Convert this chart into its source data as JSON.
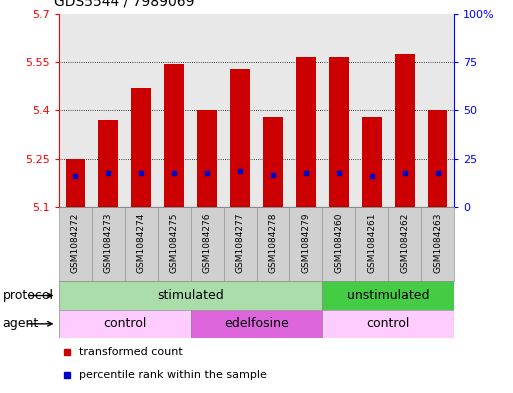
{
  "title": "GDS5544 / 7989069",
  "samples": [
    "GSM1084272",
    "GSM1084273",
    "GSM1084274",
    "GSM1084275",
    "GSM1084276",
    "GSM1084277",
    "GSM1084278",
    "GSM1084279",
    "GSM1084260",
    "GSM1084261",
    "GSM1084262",
    "GSM1084263"
  ],
  "bar_tops": [
    5.25,
    5.37,
    5.47,
    5.545,
    5.4,
    5.53,
    5.38,
    5.565,
    5.565,
    5.38,
    5.575,
    5.4
  ],
  "bar_bottom": 5.1,
  "blue_marker_y": [
    5.195,
    5.205,
    5.205,
    5.205,
    5.205,
    5.21,
    5.2,
    5.205,
    5.205,
    5.195,
    5.205,
    5.205
  ],
  "ylim_left": [
    5.1,
    5.7
  ],
  "ylim_right": [
    0,
    100
  ],
  "yticks_left": [
    5.1,
    5.25,
    5.4,
    5.55,
    5.7
  ],
  "ytick_labels_left": [
    "5.1",
    "5.25",
    "5.4",
    "5.55",
    "5.7"
  ],
  "yticks_right": [
    0,
    25,
    50,
    75,
    100
  ],
  "ytick_labels_right": [
    "0",
    "25",
    "50",
    "75",
    "100%"
  ],
  "bar_color": "#cc0000",
  "blue_color": "#0000cc",
  "bar_width": 0.6,
  "protocol_groups": [
    {
      "label": "stimulated",
      "start": 0,
      "end": 8,
      "color": "#aaddaa"
    },
    {
      "label": "unstimulated",
      "start": 8,
      "end": 12,
      "color": "#44cc44"
    }
  ],
  "agent_groups": [
    {
      "label": "control",
      "start": 0,
      "end": 4,
      "color": "#ffccff"
    },
    {
      "label": "edelfosine",
      "start": 4,
      "end": 8,
      "color": "#dd66dd"
    },
    {
      "label": "control",
      "start": 8,
      "end": 12,
      "color": "#ffccff"
    }
  ],
  "protocol_label": "protocol",
  "agent_label": "agent",
  "legend_items": [
    {
      "label": "transformed count",
      "color": "#cc0000"
    },
    {
      "label": "percentile rank within the sample",
      "color": "#0000cc"
    }
  ],
  "plot_bg": "#e8e8e8",
  "fig_bg": "#ffffff",
  "title_fontsize": 10,
  "tick_label_fontsize": 8,
  "sample_fontsize": 6.5,
  "row_label_fontsize": 9,
  "group_label_fontsize": 9,
  "legend_fontsize": 8
}
